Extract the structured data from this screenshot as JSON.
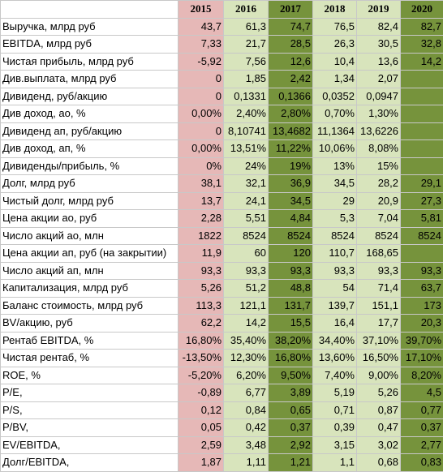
{
  "colors": {
    "y2015": "#e6b8b7",
    "y2016": "#d8e4bc",
    "y2017": "#76933c",
    "y2018": "#d8e4bc",
    "y2019": "#d8e4bc",
    "y2020": "#76933c"
  },
  "table": {
    "years": [
      "2015",
      "2016",
      "2017",
      "2018",
      "2019",
      "2020"
    ],
    "rows": [
      {
        "label": "Выручка, млрд руб",
        "values": [
          "43,7",
          "61,3",
          "74,7",
          "76,5",
          "82,4",
          "82,7"
        ]
      },
      {
        "label": "EBITDA, млрд руб",
        "values": [
          "7,33",
          "21,7",
          "28,5",
          "26,3",
          "30,5",
          "32,8"
        ]
      },
      {
        "label": "Чистая прибыль, млрд руб",
        "values": [
          "-5,92",
          "7,56",
          "12,6",
          "10,4",
          "13,6",
          "14,2"
        ]
      },
      {
        "label": "Див.выплата, млрд руб",
        "values": [
          "0",
          "1,85",
          "2,42",
          "1,34",
          "2,07",
          ""
        ]
      },
      {
        "label": "Дивиденд, руб/акцию",
        "values": [
          "0",
          "0,1331",
          "0,1366",
          "0,0352",
          "0,0947",
          ""
        ]
      },
      {
        "label": "Див доход, ао, %",
        "values": [
          "0,00%",
          "2,40%",
          "2,80%",
          "0,70%",
          "1,30%",
          ""
        ]
      },
      {
        "label": "Дивиденд ап, руб/акцию",
        "values": [
          "0",
          "8,10741",
          "13,4682",
          "11,1364",
          "13,6226",
          ""
        ]
      },
      {
        "label": "Див доход, ап, %",
        "values": [
          "0,00%",
          "13,51%",
          "11,22%",
          "10,06%",
          "8,08%",
          ""
        ]
      },
      {
        "label": "Дивиденды/прибыль, %",
        "values": [
          "0%",
          "24%",
          "19%",
          "13%",
          "15%",
          ""
        ]
      },
      {
        "label": "Долг, млрд руб",
        "values": [
          "38,1",
          "32,1",
          "36,9",
          "34,5",
          "28,2",
          "29,1"
        ]
      },
      {
        "label": "Чистый долг, млрд руб",
        "values": [
          "13,7",
          "24,1",
          "34,5",
          "29",
          "20,9",
          "27,3"
        ]
      },
      {
        "label": "Цена акции ао, руб",
        "values": [
          "2,28",
          "5,51",
          "4,84",
          "5,3",
          "7,04",
          "5,81"
        ]
      },
      {
        "label": "Число акций ао, млн",
        "values": [
          "1822",
          "8524",
          "8524",
          "8524",
          "8524",
          "8524"
        ]
      },
      {
        "label": "Цена акции ап, руб (на закрытии)",
        "values": [
          "11,9",
          "60",
          "120",
          "110,7",
          "168,65",
          ""
        ]
      },
      {
        "label": "Число акций ап, млн",
        "values": [
          "93,3",
          "93,3",
          "93,3",
          "93,3",
          "93,3",
          "93,3"
        ]
      },
      {
        "label": "Капитализация, млрд руб",
        "values": [
          "5,26",
          "51,2",
          "48,8",
          "54",
          "71,4",
          "63,7"
        ]
      },
      {
        "label": "Баланс стоимость, млрд руб",
        "values": [
          "113,3",
          "121,1",
          "131,7",
          "139,7",
          "151,1",
          "173"
        ]
      },
      {
        "label": "BV/акцию, руб",
        "values": [
          "62,2",
          "14,2",
          "15,5",
          "16,4",
          "17,7",
          "20,3"
        ]
      },
      {
        "label": "Рентаб EBITDA, %",
        "values": [
          "16,80%",
          "35,40%",
          "38,20%",
          "34,40%",
          "37,10%",
          "39,70%"
        ]
      },
      {
        "label": "Чистая рентаб, %",
        "values": [
          "-13,50%",
          "12,30%",
          "16,80%",
          "13,60%",
          "16,50%",
          "17,10%"
        ]
      },
      {
        "label": "ROE, %",
        "values": [
          "-5,20%",
          "6,20%",
          "9,50%",
          "7,40%",
          "9,00%",
          "8,20%"
        ]
      },
      {
        "label": "P/E,",
        "values": [
          "-0,89",
          "6,77",
          "3,89",
          "5,19",
          "5,26",
          "4,5"
        ]
      },
      {
        "label": "P/S,",
        "values": [
          "0,12",
          "0,84",
          "0,65",
          "0,71",
          "0,87",
          "0,77"
        ]
      },
      {
        "label": "P/BV,",
        "values": [
          "0,05",
          "0,42",
          "0,37",
          "0,39",
          "0,47",
          "0,37"
        ]
      },
      {
        "label": "EV/EBITDA,",
        "values": [
          "2,59",
          "3,48",
          "2,92",
          "3,15",
          "3,02",
          "2,77"
        ]
      },
      {
        "label": "Долг/EBITDA,",
        "values": [
          "1,87",
          "1,11",
          "1,21",
          "1,1",
          "0,68",
          "0,83"
        ]
      }
    ]
  }
}
